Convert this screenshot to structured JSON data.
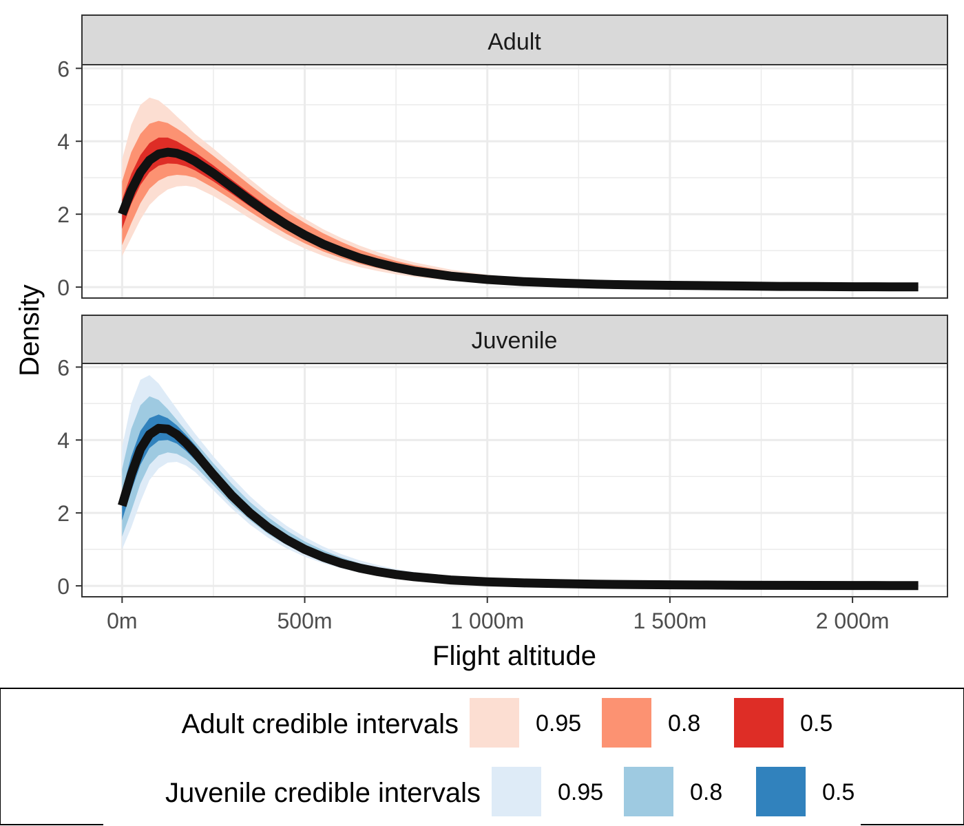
{
  "chart_data": {
    "type": "area",
    "facets": [
      {
        "title": "Adult",
        "colors": {
          "ci95": "#FCDED2",
          "ci80": "#FC9272",
          "ci50": "#DE2D26",
          "median": "#111111"
        },
        "median": {
          "x": [
            0,
            25,
            50,
            75,
            100,
            125,
            150,
            175,
            200,
            250,
            300,
            350,
            400,
            450,
            500,
            550,
            600,
            650,
            700,
            750,
            800,
            900,
            1000,
            1100,
            1200,
            1300,
            1400,
            1500,
            1600,
            1700,
            1800,
            1900,
            2000,
            2100,
            2180
          ],
          "y": [
            2.0,
            2.65,
            3.15,
            3.48,
            3.65,
            3.7,
            3.67,
            3.58,
            3.45,
            3.12,
            2.75,
            2.38,
            2.03,
            1.71,
            1.43,
            1.18,
            0.98,
            0.8,
            0.66,
            0.54,
            0.44,
            0.3,
            0.21,
            0.15,
            0.11,
            0.08,
            0.06,
            0.05,
            0.04,
            0.03,
            0.02,
            0.015,
            0.01,
            0.008,
            0.005
          ]
        },
        "ci95": {
          "lower": [
            0.85,
            1.35,
            1.85,
            2.25,
            2.5,
            2.68,
            2.76,
            2.78,
            2.74,
            2.5,
            2.2,
            1.88,
            1.58,
            1.3,
            1.06,
            0.86,
            0.69,
            0.55,
            0.44,
            0.35,
            0.28,
            0.18,
            0.12,
            0.08,
            0.06,
            0.04,
            0.03,
            0.02,
            0.015,
            0.01,
            0.008,
            0.005,
            0.004,
            0.003,
            0.002
          ],
          "upper": [
            3.5,
            4.45,
            5.0,
            5.2,
            5.12,
            4.92,
            4.68,
            4.45,
            4.2,
            3.8,
            3.38,
            2.96,
            2.56,
            2.2,
            1.88,
            1.59,
            1.35,
            1.14,
            0.96,
            0.81,
            0.68,
            0.48,
            0.34,
            0.25,
            0.18,
            0.14,
            0.11,
            0.08,
            0.065,
            0.05,
            0.04,
            0.03,
            0.025,
            0.02,
            0.015
          ]
        },
        "ci80": {
          "lower": [
            1.15,
            1.75,
            2.3,
            2.7,
            2.92,
            3.04,
            3.08,
            3.06,
            3.0,
            2.72,
            2.4,
            2.07,
            1.75,
            1.46,
            1.2,
            0.98,
            0.8,
            0.64,
            0.52,
            0.42,
            0.34,
            0.22,
            0.15,
            0.1,
            0.07,
            0.05,
            0.04,
            0.03,
            0.02,
            0.015,
            0.01,
            0.008,
            0.006,
            0.004,
            0.003
          ],
          "upper": [
            2.9,
            3.7,
            4.2,
            4.48,
            4.56,
            4.5,
            4.35,
            4.18,
            3.98,
            3.6,
            3.2,
            2.8,
            2.42,
            2.07,
            1.76,
            1.48,
            1.24,
            1.03,
            0.86,
            0.72,
            0.6,
            0.42,
            0.3,
            0.22,
            0.16,
            0.12,
            0.09,
            0.07,
            0.055,
            0.045,
            0.035,
            0.026,
            0.02,
            0.016,
            0.012
          ]
        },
        "ci50": {
          "lower": [
            1.6,
            2.28,
            2.8,
            3.15,
            3.33,
            3.39,
            3.38,
            3.31,
            3.2,
            2.9,
            2.56,
            2.21,
            1.88,
            1.58,
            1.31,
            1.08,
            0.89,
            0.72,
            0.59,
            0.48,
            0.39,
            0.26,
            0.18,
            0.13,
            0.09,
            0.065,
            0.05,
            0.04,
            0.03,
            0.022,
            0.016,
            0.012,
            0.009,
            0.007,
            0.005
          ],
          "upper": [
            2.4,
            3.1,
            3.62,
            3.95,
            4.1,
            4.1,
            4.0,
            3.85,
            3.7,
            3.34,
            2.95,
            2.57,
            2.2,
            1.86,
            1.56,
            1.3,
            1.08,
            0.89,
            0.74,
            0.61,
            0.5,
            0.35,
            0.25,
            0.18,
            0.13,
            0.1,
            0.075,
            0.058,
            0.045,
            0.035,
            0.027,
            0.02,
            0.015,
            0.012,
            0.009
          ]
        }
      },
      {
        "title": "Juvenile",
        "colors": {
          "ci95": "#DEEBF7",
          "ci80": "#9ECAE1",
          "ci50": "#3182BD",
          "median": "#111111"
        },
        "median": {
          "x": [
            0,
            25,
            50,
            75,
            100,
            125,
            150,
            175,
            200,
            250,
            300,
            350,
            400,
            450,
            500,
            550,
            600,
            650,
            700,
            750,
            800,
            900,
            1000,
            1100,
            1200,
            1300,
            1400,
            1500,
            1600,
            1700,
            1800,
            1900,
            2000,
            2100,
            2180
          ],
          "y": [
            2.2,
            3.05,
            3.75,
            4.15,
            4.32,
            4.3,
            4.15,
            3.92,
            3.65,
            3.05,
            2.48,
            2.0,
            1.6,
            1.27,
            1.0,
            0.79,
            0.62,
            0.49,
            0.39,
            0.31,
            0.25,
            0.16,
            0.11,
            0.08,
            0.06,
            0.045,
            0.035,
            0.028,
            0.022,
            0.018,
            0.014,
            0.011,
            0.009,
            0.007,
            0.005
          ]
        },
        "ci95": {
          "lower": [
            1.0,
            1.6,
            2.3,
            2.9,
            3.22,
            3.38,
            3.4,
            3.3,
            3.12,
            2.62,
            2.12,
            1.68,
            1.32,
            1.03,
            0.8,
            0.62,
            0.48,
            0.37,
            0.29,
            0.23,
            0.18,
            0.11,
            0.07,
            0.05,
            0.035,
            0.025,
            0.018,
            0.013,
            0.01,
            0.008,
            0.006,
            0.004,
            0.003,
            0.002,
            0.0015
          ],
          "upper": [
            3.8,
            5.0,
            5.65,
            5.78,
            5.55,
            5.2,
            4.85,
            4.5,
            4.17,
            3.55,
            2.98,
            2.46,
            2.02,
            1.65,
            1.34,
            1.08,
            0.87,
            0.7,
            0.57,
            0.46,
            0.38,
            0.26,
            0.18,
            0.13,
            0.095,
            0.07,
            0.055,
            0.042,
            0.033,
            0.026,
            0.021,
            0.017,
            0.014,
            0.011,
            0.009
          ]
        },
        "ci80": {
          "lower": [
            1.35,
            2.05,
            2.8,
            3.32,
            3.58,
            3.66,
            3.62,
            3.48,
            3.28,
            2.76,
            2.24,
            1.8,
            1.42,
            1.12,
            0.88,
            0.68,
            0.53,
            0.41,
            0.32,
            0.25,
            0.2,
            0.13,
            0.085,
            0.06,
            0.043,
            0.032,
            0.024,
            0.018,
            0.014,
            0.011,
            0.008,
            0.006,
            0.005,
            0.004,
            0.003
          ],
          "upper": [
            3.2,
            4.3,
            4.95,
            5.2,
            5.1,
            4.85,
            4.55,
            4.25,
            3.95,
            3.36,
            2.8,
            2.3,
            1.88,
            1.52,
            1.22,
            0.98,
            0.78,
            0.62,
            0.5,
            0.4,
            0.32,
            0.21,
            0.145,
            0.105,
            0.077,
            0.058,
            0.045,
            0.035,
            0.028,
            0.022,
            0.018,
            0.014,
            0.011,
            0.009,
            0.007
          ]
        },
        "ci50": {
          "lower": [
            1.8,
            2.6,
            3.32,
            3.78,
            3.98,
            4.0,
            3.9,
            3.7,
            3.45,
            2.9,
            2.36,
            1.9,
            1.52,
            1.2,
            0.94,
            0.74,
            0.58,
            0.45,
            0.36,
            0.28,
            0.22,
            0.14,
            0.1,
            0.07,
            0.05,
            0.038,
            0.029,
            0.022,
            0.017,
            0.014,
            0.011,
            0.008,
            0.007,
            0.005,
            0.004
          ],
          "upper": [
            2.6,
            3.55,
            4.25,
            4.6,
            4.7,
            4.6,
            4.4,
            4.14,
            3.86,
            3.22,
            2.62,
            2.12,
            1.7,
            1.35,
            1.07,
            0.85,
            0.67,
            0.53,
            0.42,
            0.34,
            0.28,
            0.18,
            0.125,
            0.09,
            0.068,
            0.052,
            0.041,
            0.032,
            0.026,
            0.021,
            0.017,
            0.014,
            0.011,
            0.009,
            0.007
          ]
        }
      }
    ],
    "xlabel": "Flight altitude",
    "ylabel": "Density",
    "xlim": [
      -110,
      2260
    ],
    "ylim": [
      -0.3,
      6.1
    ],
    "xticks": [
      0,
      500,
      1000,
      1500,
      2000
    ],
    "xtick_labels": [
      "0m",
      "500m",
      "1 000m",
      "1 500m",
      "2 000m"
    ],
    "yticks": [
      0,
      2,
      4,
      6
    ],
    "ytick_labels": [
      "0",
      "2",
      "4",
      "6"
    ],
    "grid": true,
    "legend": {
      "placement": "bottom",
      "groups": [
        {
          "title": "Adult credible intervals",
          "items": [
            {
              "label": "0.95",
              "color": "#FCDED2"
            },
            {
              "label": "0.8",
              "color": "#FC9272"
            },
            {
              "label": "0.5",
              "color": "#DE2D26"
            }
          ]
        },
        {
          "title": "Juvenile credible intervals",
          "items": [
            {
              "label": "0.95",
              "color": "#DEEBF7"
            },
            {
              "label": "0.8",
              "color": "#9ECAE1"
            },
            {
              "label": "0.5",
              "color": "#3182BD"
            }
          ]
        }
      ]
    }
  }
}
